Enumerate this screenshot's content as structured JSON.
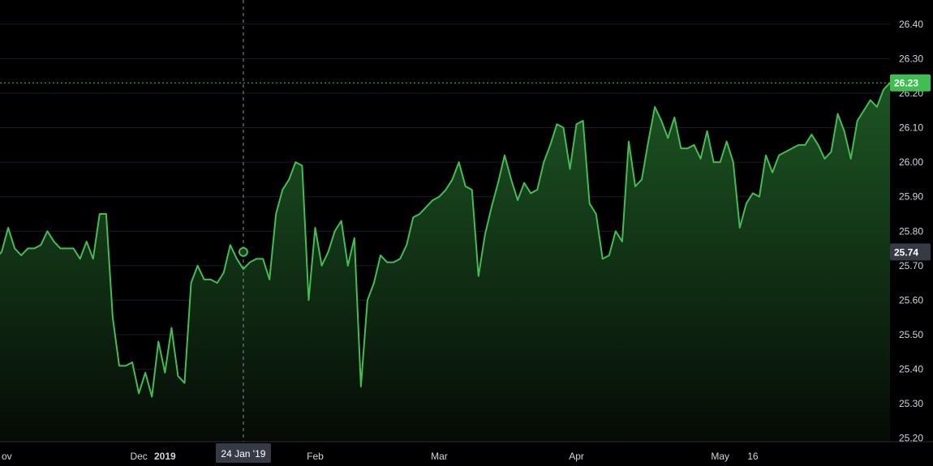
{
  "chart_data": {
    "type": "area",
    "x": [
      "2018-11-28",
      "2018-11-29",
      "2018-11-30",
      "2018-12-03",
      "2018-12-04",
      "2018-12-05",
      "2018-12-06",
      "2018-12-07",
      "2018-12-10",
      "2018-12-11",
      "2018-12-12",
      "2018-12-13",
      "2018-12-14",
      "2018-12-17",
      "2018-12-18",
      "2018-12-19",
      "2018-12-20",
      "2018-12-21",
      "2018-12-24",
      "2018-12-26",
      "2018-12-27",
      "2018-12-28",
      "2018-12-31",
      "2019-01-02",
      "2019-01-03",
      "2019-01-04",
      "2019-01-07",
      "2019-01-08",
      "2019-01-09",
      "2019-01-10",
      "2019-01-11",
      "2019-01-14",
      "2019-01-15",
      "2019-01-16",
      "2019-01-17",
      "2019-01-18",
      "2019-01-22",
      "2019-01-23",
      "2019-01-24",
      "2019-01-25",
      "2019-01-28",
      "2019-01-29",
      "2019-01-30",
      "2019-01-31",
      "2019-02-01",
      "2019-02-04",
      "2019-02-05",
      "2019-02-06",
      "2019-02-07",
      "2019-02-08",
      "2019-02-11",
      "2019-02-12",
      "2019-02-13",
      "2019-02-14",
      "2019-02-15",
      "2019-02-19",
      "2019-02-20",
      "2019-02-21",
      "2019-02-22",
      "2019-02-25",
      "2019-02-26",
      "2019-02-27",
      "2019-02-28",
      "2019-03-01",
      "2019-03-04",
      "2019-03-05",
      "2019-03-06",
      "2019-03-07",
      "2019-03-08",
      "2019-03-11",
      "2019-03-12",
      "2019-03-13",
      "2019-03-14",
      "2019-03-15",
      "2019-03-18",
      "2019-03-19",
      "2019-03-20",
      "2019-03-21",
      "2019-03-22",
      "2019-03-25",
      "2019-03-26",
      "2019-03-27",
      "2019-03-28",
      "2019-03-29",
      "2019-04-01",
      "2019-04-02",
      "2019-04-03",
      "2019-04-04",
      "2019-04-05",
      "2019-04-08",
      "2019-04-09",
      "2019-04-10",
      "2019-04-11",
      "2019-04-12",
      "2019-04-15",
      "2019-04-16",
      "2019-04-17",
      "2019-04-18",
      "2019-04-22",
      "2019-04-23",
      "2019-04-24",
      "2019-04-25",
      "2019-04-26",
      "2019-04-29",
      "2019-04-30",
      "2019-05-01",
      "2019-05-02",
      "2019-05-03",
      "2019-05-06",
      "2019-05-07",
      "2019-05-08",
      "2019-05-09",
      "2019-05-10",
      "2019-05-13",
      "2019-05-14",
      "2019-05-15",
      "2019-05-16",
      "2019-05-17",
      "2019-05-20",
      "2019-05-21"
    ],
    "series": [
      {
        "values": [
          25.72,
          25.74,
          25.81,
          25.75,
          25.73,
          25.75,
          25.75,
          25.76,
          25.8,
          25.77,
          25.75,
          25.75,
          25.75,
          25.72,
          25.77,
          25.72,
          25.85,
          25.85,
          25.55,
          25.41,
          25.41,
          25.42,
          25.33,
          25.39,
          25.32,
          25.48,
          25.39,
          25.52,
          25.38,
          25.36,
          25.65,
          25.7,
          25.66,
          25.66,
          25.65,
          25.68,
          25.76,
          25.72,
          25.69,
          25.71,
          25.72,
          25.72,
          25.66,
          25.85,
          25.92,
          25.95,
          26.0,
          25.99,
          25.6,
          25.81,
          25.7,
          25.74,
          25.8,
          25.83,
          25.7,
          25.78,
          25.35,
          25.6,
          25.65,
          25.73,
          25.71,
          25.71,
          25.72,
          25.76,
          25.84,
          25.85,
          25.87,
          25.89,
          25.9,
          25.92,
          25.95,
          26.0,
          25.93,
          25.92,
          25.67,
          25.79,
          25.87,
          25.94,
          26.02,
          25.95,
          25.89,
          25.94,
          25.91,
          25.92,
          26.0,
          26.05,
          26.11,
          26.1,
          25.98,
          26.11,
          26.12,
          25.88,
          25.85,
          25.72,
          25.73,
          25.8,
          25.77,
          26.06,
          25.93,
          25.95,
          26.06,
          26.16,
          26.12,
          26.07,
          26.13,
          26.04,
          26.04,
          26.05,
          26.01,
          26.09,
          26.0,
          26.0,
          26.06,
          26.0,
          25.81,
          25.88,
          25.91,
          25.9,
          26.02,
          25.97
        ]
      }
    ],
    "tail_values": [
      26.02,
      26.03,
      26.04,
      26.05,
      26.05,
      26.08,
      26.05,
      26.01,
      26.03,
      26.14,
      26.09,
      26.01,
      26.12,
      26.15,
      26.18,
      26.16,
      26.21,
      26.23
    ],
    "ylim": [
      25.19,
      26.47
    ],
    "y_ticks": [
      "26.40",
      "26.30",
      "26.20",
      "26.10",
      "26.00",
      "25.90",
      "25.80",
      "25.70",
      "25.60",
      "25.50",
      "25.40",
      "25.30",
      "25.20"
    ],
    "x_ticks": [
      {
        "label": "ov",
        "x": "2018-12-01",
        "bold": false
      },
      {
        "label": "Dec",
        "x": "2018-12-31",
        "bold": false
      },
      {
        "label": "2019",
        "x": "2019-01-07",
        "bold": true
      },
      {
        "label": "Feb",
        "x": "2019-02-08",
        "bold": false
      },
      {
        "label": "Mar",
        "x": "2019-03-08",
        "bold": false
      },
      {
        "label": "Apr",
        "x": "2019-04-08",
        "bold": false
      },
      {
        "label": "May",
        "x": "2019-05-09",
        "bold": false
      },
      {
        "label": "16",
        "x": "2019-05-16",
        "bold": false
      }
    ],
    "last_price": "26.23",
    "crosshair": {
      "date_label": "24 Jan '19",
      "price_label": "25.74",
      "value": 25.74
    },
    "grid": true,
    "colors": {
      "line": "#3fbf4f",
      "fill_top": "#1e5a25",
      "fill_bottom": "#050a05",
      "last_badge": "#3fbf4f",
      "crosshair_badge": "#363a45",
      "grid": "#1a1d24",
      "background": "#000000"
    }
  }
}
